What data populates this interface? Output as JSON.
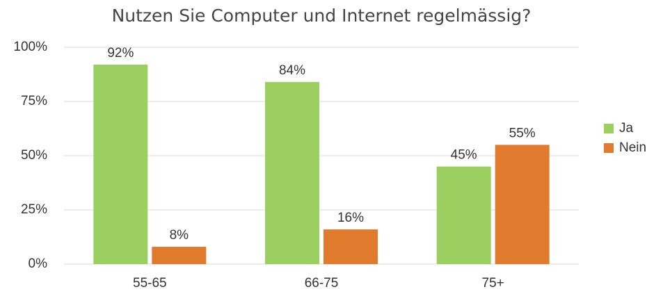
{
  "chart_data": {
    "type": "bar",
    "title": "Nutzen Sie Computer und Internet regelmässig?",
    "categories": [
      "55-65",
      "66-75",
      "75+"
    ],
    "series": [
      {
        "name": "Ja",
        "color": "#9bcf5f",
        "values": [
          92,
          84,
          45
        ],
        "value_labels": [
          "92%",
          "84%",
          "45%"
        ]
      },
      {
        "name": "Nein",
        "color": "#e07b2e",
        "values": [
          8,
          16,
          55
        ],
        "value_labels": [
          "8%",
          "16%",
          "55%"
        ]
      }
    ],
    "ylim": [
      0,
      100
    ],
    "yticks": [
      {
        "value": 0,
        "label": "0%"
      },
      {
        "value": 25,
        "label": "25%"
      },
      {
        "value": 50,
        "label": "50%"
      },
      {
        "value": 75,
        "label": "75%"
      },
      {
        "value": 100,
        "label": "100%"
      }
    ],
    "grid": true,
    "legend": "right"
  }
}
